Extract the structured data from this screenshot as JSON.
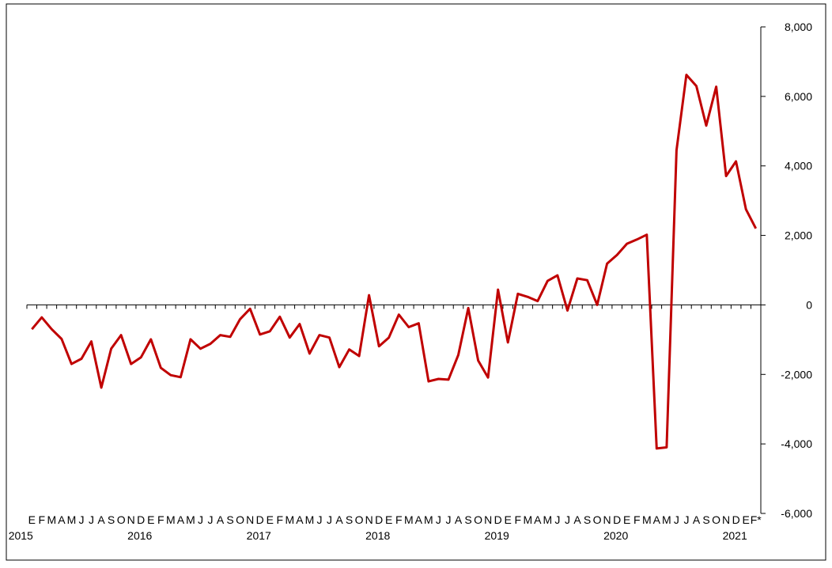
{
  "chart_data": {
    "type": "line",
    "categories": [
      "E",
      "F",
      "M",
      "A",
      "M",
      "J",
      "J",
      "A",
      "S",
      "O",
      "N",
      "D",
      "E",
      "F",
      "M",
      "A",
      "M",
      "J",
      "J",
      "A",
      "S",
      "O",
      "N",
      "D",
      "E",
      "F",
      "M",
      "A",
      "M",
      "J",
      "J",
      "A",
      "S",
      "O",
      "N",
      "D",
      "E",
      "F",
      "M",
      "A",
      "M",
      "J",
      "J",
      "A",
      "S",
      "O",
      "N",
      "D",
      "E",
      "F",
      "M",
      "A",
      "M",
      "J",
      "J",
      "A",
      "S",
      "O",
      "N",
      "D",
      "E",
      "F",
      "M",
      "A",
      "M",
      "J",
      "J",
      "A",
      "S",
      "O",
      "N",
      "D",
      "E",
      "F*"
    ],
    "years": [
      "2015",
      "2016",
      "2017",
      "2018",
      "2019",
      "2020",
      "2021"
    ],
    "series": [
      {
        "color": "#c00000",
        "values": [
          -700,
          -360,
          -700,
          -980,
          -1700,
          -1550,
          -1050,
          -2380,
          -1260,
          -870,
          -1700,
          -1510,
          -990,
          -1810,
          -2020,
          -2080,
          -990,
          -1260,
          -1120,
          -870,
          -920,
          -410,
          -110,
          -850,
          -760,
          -340,
          -940,
          -550,
          -1400,
          -870,
          -940,
          -1790,
          -1280,
          -1470,
          280,
          -1190,
          -940,
          -280,
          -640,
          -530,
          -2200,
          -2130,
          -2150,
          -1440,
          -90,
          -1600,
          -2090,
          440,
          -1080,
          320,
          230,
          110,
          690,
          850,
          -160,
          760,
          710,
          0,
          1190,
          1440,
          1760,
          1880,
          2020,
          -4130,
          -4100,
          4450,
          6620,
          6300,
          5160,
          6280,
          3710,
          4130,
          2750,
          2200
        ]
      }
    ],
    "ylim": [
      -6000,
      8000
    ],
    "yticks": [
      {
        "value": -6000,
        "label": "-6,000"
      },
      {
        "value": -4000,
        "label": "-4,000"
      },
      {
        "value": -2000,
        "label": "-2,000"
      },
      0,
      {
        "value": 2000,
        "label": "2,000"
      },
      {
        "value": 4000,
        "label": "4,000"
      },
      {
        "value": 6000,
        "label": "6,000"
      },
      {
        "value": 8000,
        "label": "8,000"
      }
    ]
  }
}
